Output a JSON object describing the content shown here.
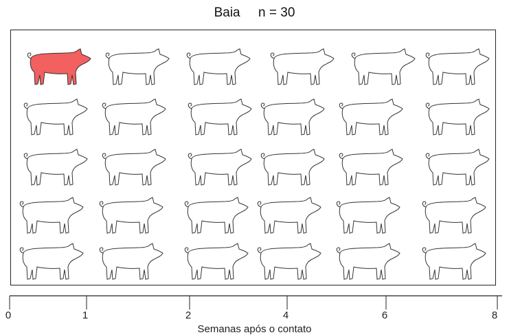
{
  "title": {
    "label": "Baia",
    "n_label": "n = 30"
  },
  "pen": {
    "total": 30,
    "infected_indices": [
      0
    ],
    "infected_color": "#f26060",
    "healthy_color": "#ffffff",
    "outline_color": "#333333",
    "pig_icon": "pig-icon",
    "rows": 5,
    "columns": 6
  },
  "axis": {
    "label": "Semanas após o contato",
    "ticks": [
      "0",
      "1",
      "2",
      "4",
      "6",
      "8"
    ]
  }
}
